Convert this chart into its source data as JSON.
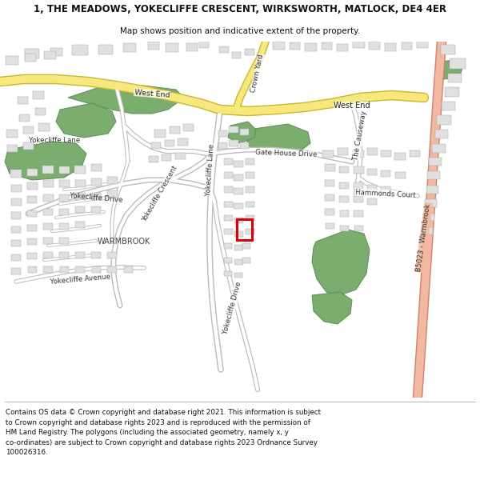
{
  "title_line1": "1, THE MEADOWS, YOKECLIFFE CRESCENT, WIRKSWORTH, MATLOCK, DE4 4ER",
  "title_line2": "Map shows position and indicative extent of the property.",
  "footer_lines": [
    "Contains OS data © Crown copyright and database right 2021. This information is subject to Crown copyright and database rights 2023 and is reproduced with the permission of",
    "HM Land Registry. The polygons (including the associated geometry, namely x, y co-ordinates) are subject to Crown copyright and database rights 2023 Ordnance Survey",
    "100026316."
  ],
  "bg_color": "#ffffff",
  "map_bg": "#ffffff",
  "road_yellow_fill": "#f7e87e",
  "road_yellow_border": "#c8b830",
  "road_pink_fill": "#f2b8a0",
  "road_pink_border": "#d08070",
  "road_gray_border": "#bbbbbb",
  "road_white_fill": "#ffffff",
  "green_fill": "#7aad6e",
  "green_edge": "#5a8d5a",
  "building_fill": "#e0e0e0",
  "building_edge": "#aaaaaa",
  "plot_color": "#dd0000"
}
